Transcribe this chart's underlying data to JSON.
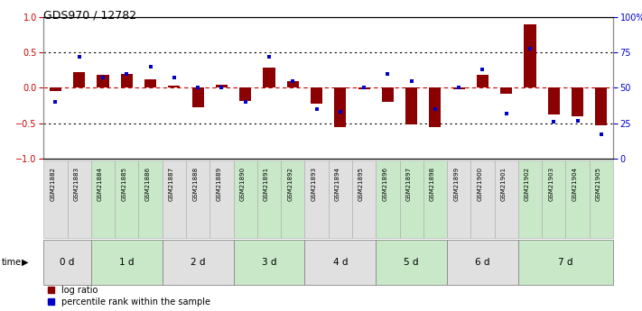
{
  "title": "GDS970 / 12782",
  "samples": [
    "GSM21882",
    "GSM21883",
    "GSM21884",
    "GSM21885",
    "GSM21886",
    "GSM21887",
    "GSM21888",
    "GSM21889",
    "GSM21890",
    "GSM21891",
    "GSM21892",
    "GSM21893",
    "GSM21894",
    "GSM21895",
    "GSM21896",
    "GSM21897",
    "GSM21898",
    "GSM21899",
    "GSM21900",
    "GSM21901",
    "GSM21902",
    "GSM21903",
    "GSM21904",
    "GSM21905"
  ],
  "log_ratio": [
    -0.04,
    0.22,
    0.18,
    0.2,
    0.12,
    0.03,
    -0.28,
    0.05,
    -0.18,
    0.28,
    0.1,
    -0.22,
    -0.55,
    -0.02,
    -0.2,
    -0.52,
    -0.55,
    -0.02,
    0.18,
    -0.08,
    0.9,
    -0.38,
    -0.4,
    -0.53
  ],
  "percentile_rank": [
    40,
    72,
    57,
    60,
    65,
    57,
    50,
    50,
    40,
    72,
    55,
    35,
    33,
    50,
    60,
    55,
    35,
    50,
    63,
    32,
    78,
    26,
    27,
    17
  ],
  "time_groups": [
    {
      "label": "0 d",
      "start": 0,
      "end": 2,
      "color": "#e0e0e0"
    },
    {
      "label": "1 d",
      "start": 2,
      "end": 5,
      "color": "#c8e8c8"
    },
    {
      "label": "2 d",
      "start": 5,
      "end": 8,
      "color": "#e0e0e0"
    },
    {
      "label": "3 d",
      "start": 8,
      "end": 11,
      "color": "#c8e8c8"
    },
    {
      "label": "4 d",
      "start": 11,
      "end": 14,
      "color": "#e0e0e0"
    },
    {
      "label": "5 d",
      "start": 14,
      "end": 17,
      "color": "#c8e8c8"
    },
    {
      "label": "6 d",
      "start": 17,
      "end": 20,
      "color": "#e0e0e0"
    },
    {
      "label": "7 d",
      "start": 20,
      "end": 24,
      "color": "#c8e8c8"
    }
  ],
  "bar_color": "#8B0000",
  "dot_color": "#0000CD",
  "ylim": [
    -1,
    1
  ],
  "y2lim": [
    0,
    100
  ],
  "yticks_left": [
    -1,
    -0.5,
    0,
    0.5,
    1
  ],
  "yticks_right": [
    0,
    25,
    50,
    75,
    100
  ]
}
